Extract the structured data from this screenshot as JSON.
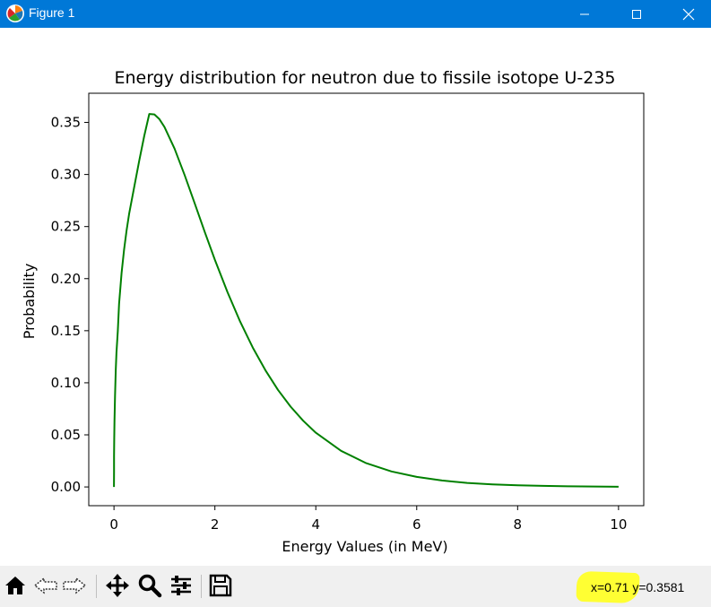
{
  "window": {
    "title": "Figure 1",
    "app_icon": "matplotlib-logo-icon",
    "controls": [
      "minimize-icon",
      "maximize-icon",
      "close-icon"
    ]
  },
  "chart_data": {
    "type": "line",
    "title": "Energy distribution for neutron due to fissile isotope U-235",
    "xlabel": "Energy Values (in MeV)",
    "ylabel": "Probability",
    "xlim": [
      -0.5,
      10.5
    ],
    "ylim": [
      -0.018,
      0.378
    ],
    "xticks": [
      0,
      2,
      4,
      6,
      8,
      10
    ],
    "xtick_labels": [
      "0",
      "2",
      "4",
      "6",
      "8",
      "10"
    ],
    "yticks": [
      0.0,
      0.05,
      0.1,
      0.15,
      0.2,
      0.25,
      0.3,
      0.35
    ],
    "ytick_labels": [
      "0.00",
      "0.05",
      "0.10",
      "0.15",
      "0.20",
      "0.25",
      "0.30",
      "0.35"
    ],
    "grid": false,
    "legend": "none",
    "series": [
      {
        "color": "#008000",
        "x": [
          0,
          0.0005,
          0.002,
          0.005,
          0.01,
          0.02,
          0.035,
          0.05,
          0.075,
          0.1,
          0.15,
          0.2,
          0.25,
          0.3,
          0.4,
          0.5,
          0.6,
          0.7,
          0.8,
          0.9,
          1.0,
          1.2,
          1.4,
          1.6,
          1.8,
          2.0,
          2.25,
          2.5,
          2.75,
          3.0,
          3.25,
          3.5,
          3.75,
          4.0,
          4.5,
          5.0,
          5.5,
          6.0,
          6.5,
          7.0,
          7.5,
          8.0,
          8.5,
          9.0,
          9.5,
          10.0
        ],
        "y": [
          0.0,
          0.0149,
          0.0295,
          0.0459,
          0.0637,
          0.0874,
          0.112,
          0.129,
          0.1497,
          0.1756,
          0.2054,
          0.2279,
          0.2464,
          0.2621,
          0.2875,
          0.3133,
          0.3371,
          0.3581,
          0.3577,
          0.3531,
          0.3456,
          0.3248,
          0.2995,
          0.2722,
          0.2447,
          0.218,
          0.1869,
          0.1588,
          0.1339,
          0.1121,
          0.0932,
          0.0771,
          0.0635,
          0.0521,
          0.0347,
          0.0228,
          0.0149,
          0.0096,
          0.0062,
          0.0039,
          0.0025,
          0.0016,
          0.001,
          0.0006,
          0.0004,
          0.0002
        ]
      }
    ]
  },
  "toolbar": {
    "tools": [
      "home-icon",
      "back-arrow-icon",
      "forward-arrow-icon",
      "pan-icon",
      "zoom-icon",
      "configure-subplots-icon",
      "save-icon"
    ],
    "coords_text": "x=0.71 y=0.3581",
    "highlight_color": "#ffff33"
  }
}
